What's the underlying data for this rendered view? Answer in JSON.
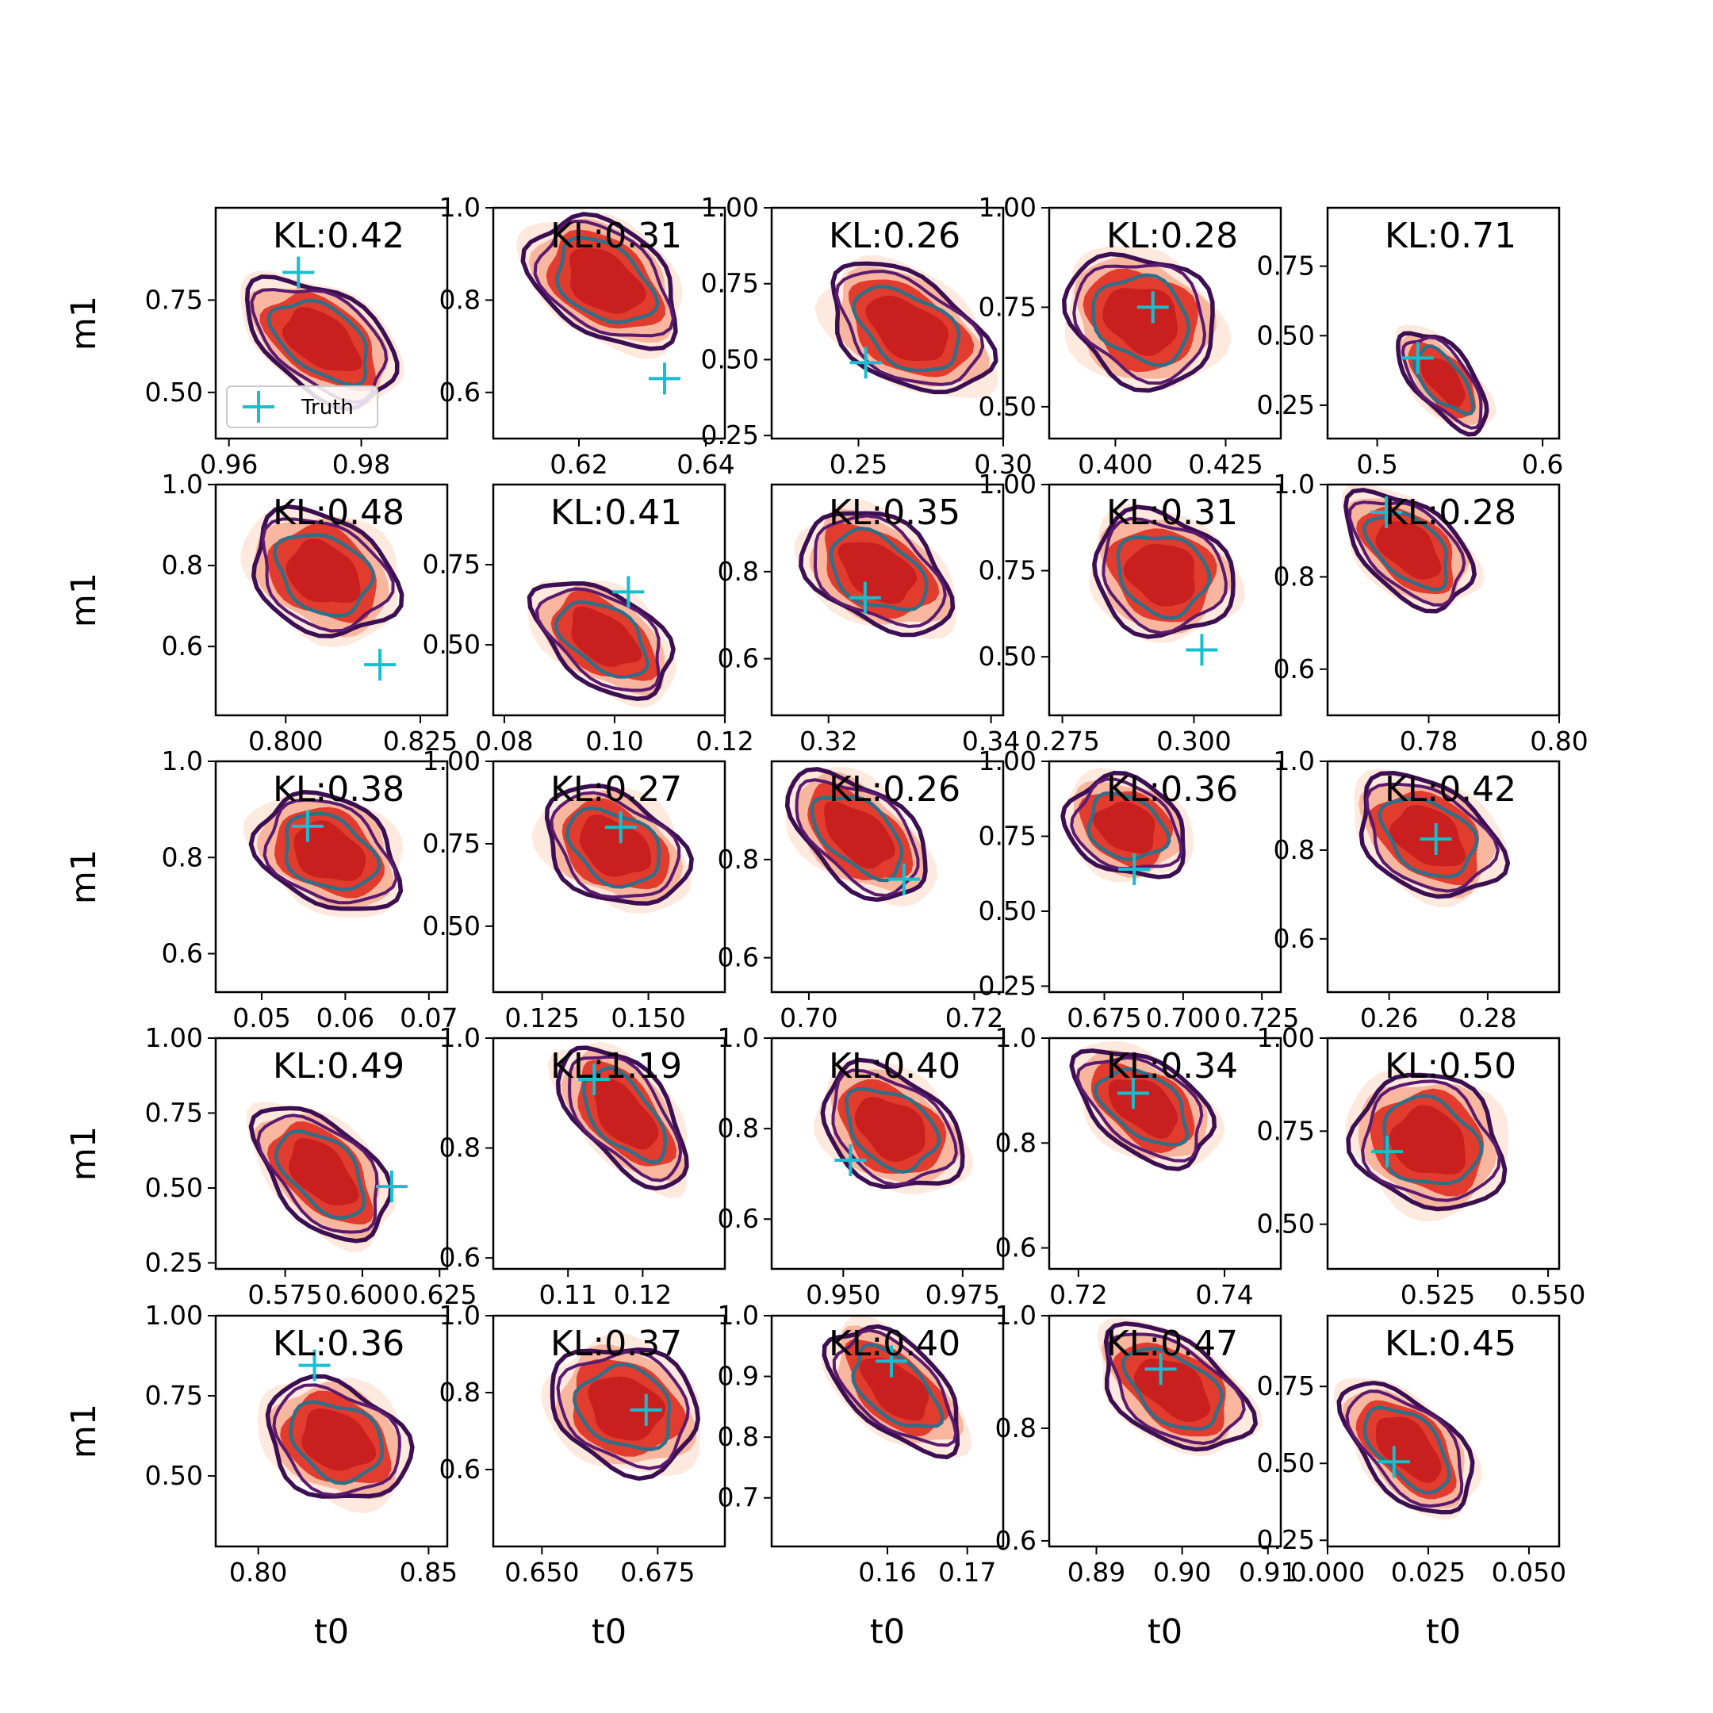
{
  "colors": {
    "posterior_fill_outer": "#fde0d2",
    "posterior_fill_mid": "#f8b39a",
    "posterior_fill_inner": "#e03628",
    "posterior_fill_core": "#c71d1d",
    "contour_outer": "#3b0f52",
    "contour_mid": "#5a1a6e",
    "contour_inner": "#2f6f87",
    "truth_marker": "#17becf"
  },
  "legend": {
    "label": "Truth",
    "panel": 0,
    "placement": "lower-left"
  },
  "chart_data": {
    "type": "contour-grid",
    "rows": 5,
    "cols": 5,
    "xlabel": "t0",
    "ylabel": "m1",
    "panels": [
      {
        "kl": "KL:0.42",
        "xlim": [
          0.958,
          0.993
        ],
        "ylim": [
          0.375,
          1.0
        ],
        "xticks": [
          0.96,
          0.98
        ],
        "xtick_labels": [
          "0.96",
          "0.98"
        ],
        "yticks": [
          0.5,
          0.75
        ],
        "ytick_labels": [
          "0.50",
          "0.75"
        ],
        "truth": [
          0.9705,
          0.825
        ],
        "center": [
          0.974,
          0.64
        ],
        "spread": [
          0.008,
          0.17
        ],
        "angle": -55
      },
      {
        "kl": "KL:0.31",
        "xlim": [
          0.6065,
          0.643
        ],
        "ylim": [
          0.5,
          1.0
        ],
        "xticks": [
          0.62,
          0.64
        ],
        "xtick_labels": [
          "0.62",
          "0.64"
        ],
        "yticks": [
          0.6,
          0.8,
          1.0
        ],
        "ytick_labels": [
          "0.6",
          "0.8",
          "1.0"
        ],
        "truth": [
          0.6335,
          0.63
        ],
        "center": [
          0.624,
          0.84
        ],
        "spread": [
          0.008,
          0.15
        ],
        "angle": -55
      },
      {
        "kl": "KL:0.26",
        "xlim": [
          0.22,
          0.3
        ],
        "ylim": [
          0.24,
          1.0
        ],
        "xticks": [
          0.25,
          0.3
        ],
        "xtick_labels": [
          "0.25",
          "0.30"
        ],
        "yticks": [
          0.25,
          0.5,
          0.75,
          1.0
        ],
        "ytick_labels": [
          "0.25",
          "0.50",
          "0.75",
          "1.00"
        ],
        "truth": [
          0.2525,
          0.49
        ],
        "center": [
          0.267,
          0.6
        ],
        "spread": [
          0.02,
          0.22
        ],
        "angle": -58
      },
      {
        "kl": "KL:0.28",
        "xlim": [
          0.385,
          0.4375
        ],
        "ylim": [
          0.42,
          1.0
        ],
        "xticks": [
          0.4,
          0.425
        ],
        "xtick_labels": [
          "0.400",
          "0.425"
        ],
        "yticks": [
          0.5,
          0.75,
          1.0
        ],
        "ytick_labels": [
          "0.50",
          "0.75",
          "1.00"
        ],
        "truth": [
          0.4085,
          0.75
        ],
        "center": [
          0.406,
          0.72
        ],
        "spread": [
          0.01,
          0.2
        ],
        "angle": -60
      },
      {
        "kl": "KL:0.71",
        "xlim": [
          0.47,
          0.61
        ],
        "ylim": [
          0.13,
          0.96
        ],
        "xticks": [
          0.5,
          0.6
        ],
        "xtick_labels": [
          "0.5",
          "0.6"
        ],
        "yticks": [
          0.25,
          0.5,
          0.75
        ],
        "ytick_labels": [
          "0.25",
          "0.50",
          "0.75"
        ],
        "truth": [
          0.5245,
          0.42
        ],
        "center": [
          0.54,
          0.34
        ],
        "spread": [
          0.022,
          0.08
        ],
        "angle": -40
      },
      {
        "kl": "KL:0.48",
        "xlim": [
          0.787,
          0.83
        ],
        "ylim": [
          0.43,
          1.0
        ],
        "xticks": [
          0.8,
          0.825
        ],
        "xtick_labels": [
          "0.800",
          "0.825"
        ],
        "yticks": [
          0.6,
          0.8,
          1.0
        ],
        "ytick_labels": [
          "0.6",
          "0.8",
          "1.0"
        ],
        "truth": [
          0.8175,
          0.555
        ],
        "center": [
          0.807,
          0.78
        ],
        "spread": [
          0.008,
          0.18
        ],
        "angle": -60
      },
      {
        "kl": "KL:0.41",
        "xlim": [
          0.078,
          0.12
        ],
        "ylim": [
          0.28,
          1.0
        ],
        "xticks": [
          0.08,
          0.1,
          0.12
        ],
        "xtick_labels": [
          "0.08",
          "0.10",
          "0.12"
        ],
        "yticks": [
          0.5,
          0.75
        ],
        "ytick_labels": [
          "0.50",
          "0.75"
        ],
        "truth": [
          0.1025,
          0.665
        ],
        "center": [
          0.098,
          0.52
        ],
        "spread": [
          0.008,
          0.18
        ],
        "angle": -55
      },
      {
        "kl": "KL:0.35",
        "xlim": [
          0.313,
          0.3415
        ],
        "ylim": [
          0.47,
          1.0
        ],
        "xticks": [
          0.32,
          0.34
        ],
        "xtick_labels": [
          "0.32",
          "0.34"
        ],
        "yticks": [
          0.6,
          0.8
        ],
        "ytick_labels": [
          "0.6",
          "0.8"
        ],
        "truth": [
          0.3245,
          0.74
        ],
        "center": [
          0.326,
          0.8
        ],
        "spread": [
          0.006,
          0.15
        ],
        "angle": -58
      },
      {
        "kl": "KL:0.31",
        "xlim": [
          0.2725,
          0.3165
        ],
        "ylim": [
          0.33,
          1.0
        ],
        "xticks": [
          0.275,
          0.3
        ],
        "xtick_labels": [
          "0.275",
          "0.300"
        ],
        "yticks": [
          0.5,
          0.75,
          1.0
        ],
        "ytick_labels": [
          "0.50",
          "0.75",
          "1.00"
        ],
        "truth": [
          0.3015,
          0.52
        ],
        "center": [
          0.294,
          0.74
        ],
        "spread": [
          0.007,
          0.22
        ],
        "angle": -65
      },
      {
        "kl": "KL:0.28",
        "xlim": [
          0.7645,
          0.8
        ],
        "ylim": [
          0.5,
          1.0
        ],
        "xticks": [
          0.78,
          0.8
        ],
        "xtick_labels": [
          "0.78",
          "0.80"
        ],
        "yticks": [
          0.6,
          0.8,
          1.0
        ],
        "ytick_labels": [
          "0.6",
          "0.8",
          "1.0"
        ],
        "truth": [
          0.7735,
          0.94
        ],
        "center": [
          0.777,
          0.86
        ],
        "spread": [
          0.006,
          0.12
        ],
        "angle": -50
      },
      {
        "kl": "KL:0.38",
        "xlim": [
          0.0445,
          0.0722
        ],
        "ylim": [
          0.52,
          1.0
        ],
        "xticks": [
          0.05,
          0.06,
          0.07
        ],
        "xtick_labels": [
          "0.05",
          "0.06",
          "0.07"
        ],
        "yticks": [
          0.6,
          0.8,
          1.0
        ],
        "ytick_labels": [
          "0.6",
          "0.8",
          "1.0"
        ],
        "truth": [
          0.0555,
          0.865
        ],
        "center": [
          0.058,
          0.81
        ],
        "spread": [
          0.005,
          0.14
        ],
        "angle": -62
      },
      {
        "kl": "KL:0.27",
        "xlim": [
          0.1135,
          0.168
        ],
        "ylim": [
          0.3,
          1.0
        ],
        "xticks": [
          0.125,
          0.15
        ],
        "xtick_labels": [
          "0.125",
          "0.150"
        ],
        "yticks": [
          0.5,
          0.75,
          1.0
        ],
        "ytick_labels": [
          "0.50",
          "0.75",
          "1.00"
        ],
        "truth": [
          0.1435,
          0.8
        ],
        "center": [
          0.142,
          0.74
        ],
        "spread": [
          0.01,
          0.2
        ],
        "angle": -60
      },
      {
        "kl": "KL:0.26",
        "xlim": [
          0.6955,
          0.7235
        ],
        "ylim": [
          0.53,
          1.0
        ],
        "xticks": [
          0.7,
          0.72
        ],
        "xtick_labels": [
          "0.70",
          "0.72"
        ],
        "yticks": [
          0.6,
          0.8
        ],
        "ytick_labels": [
          "0.6",
          "0.8"
        ],
        "truth": [
          0.7115,
          0.76
        ],
        "center": [
          0.706,
          0.85
        ],
        "spread": [
          0.006,
          0.12
        ],
        "angle": -50
      },
      {
        "kl": "KL:0.36",
        "xlim": [
          0.6575,
          0.731
        ],
        "ylim": [
          0.23,
          1.0
        ],
        "xticks": [
          0.675,
          0.7,
          0.725
        ],
        "xtick_labels": [
          "0.675",
          "0.700",
          "0.725"
        ],
        "yticks": [
          0.25,
          0.5,
          0.75,
          1.0
        ],
        "ytick_labels": [
          "0.25",
          "0.50",
          "0.75",
          "1.00"
        ],
        "truth": [
          0.6845,
          0.64
        ],
        "center": [
          0.682,
          0.78
        ],
        "spread": [
          0.008,
          0.2
        ],
        "angle": -65
      },
      {
        "kl": "KL:0.42",
        "xlim": [
          0.2475,
          0.2945
        ],
        "ylim": [
          0.48,
          1.0
        ],
        "xticks": [
          0.26,
          0.28
        ],
        "xtick_labels": [
          "0.26",
          "0.28"
        ],
        "yticks": [
          0.6,
          0.8,
          1.0
        ],
        "ytick_labels": [
          "0.6",
          "0.8",
          "1.0"
        ],
        "truth": [
          0.2695,
          0.825
        ],
        "center": [
          0.268,
          0.83
        ],
        "spread": [
          0.009,
          0.15
        ],
        "angle": -58
      },
      {
        "kl": "KL:0.49",
        "xlim": [
          0.5525,
          0.6275
        ],
        "ylim": [
          0.23,
          1.0
        ],
        "xticks": [
          0.575,
          0.6,
          0.625
        ],
        "xtick_labels": [
          "0.575",
          "0.600",
          "0.625"
        ],
        "yticks": [
          0.25,
          0.5,
          0.75,
          1.0
        ],
        "ytick_labels": [
          "0.25",
          "0.50",
          "0.75",
          "1.00"
        ],
        "truth": [
          0.6095,
          0.505
        ],
        "center": [
          0.587,
          0.55
        ],
        "spread": [
          0.016,
          0.2
        ],
        "angle": -45
      },
      {
        "kl": "KL:1.19",
        "xlim": [
          0.1,
          0.131
        ],
        "ylim": [
          0.58,
          1.0
        ],
        "xticks": [
          0.11,
          0.12
        ],
        "xtick_labels": [
          "0.11",
          "0.12"
        ],
        "yticks": [
          0.6,
          0.8,
          1.0
        ],
        "ytick_labels": [
          "0.6",
          "0.8",
          "1.0"
        ],
        "truth": [
          0.1135,
          0.925
        ],
        "center": [
          0.1175,
          0.86
        ],
        "spread": [
          0.007,
          0.1
        ],
        "angle": -40
      },
      {
        "kl": "KL:0.40",
        "xlim": [
          0.935,
          0.9835
        ],
        "ylim": [
          0.49,
          1.0
        ],
        "xticks": [
          0.95,
          0.975
        ],
        "xtick_labels": [
          "0.950",
          "0.975"
        ],
        "yticks": [
          0.6,
          0.8,
          1.0
        ],
        "ytick_labels": [
          "0.6",
          "0.8",
          "1.0"
        ],
        "truth": [
          0.9515,
          0.73
        ],
        "center": [
          0.96,
          0.8
        ],
        "spread": [
          0.009,
          0.15
        ],
        "angle": -55
      },
      {
        "kl": "KL:0.34",
        "xlim": [
          0.716,
          0.7477
        ],
        "ylim": [
          0.56,
          1.0
        ],
        "xticks": [
          0.72,
          0.74
        ],
        "xtick_labels": [
          "0.72",
          "0.74"
        ],
        "yticks": [
          0.6,
          0.8,
          1.0
        ],
        "ytick_labels": [
          "0.6",
          "0.8",
          "1.0"
        ],
        "truth": [
          0.7275,
          0.895
        ],
        "center": [
          0.729,
          0.87
        ],
        "spread": [
          0.006,
          0.11
        ],
        "angle": -55
      },
      {
        "kl": "KL:0.50",
        "xlim": [
          0.5,
          0.5525
        ],
        "ylim": [
          0.38,
          1.0
        ],
        "xticks": [
          0.525,
          0.55
        ],
        "xtick_labels": [
          "0.525",
          "0.550"
        ],
        "yticks": [
          0.5,
          0.75,
          1.0
        ],
        "ytick_labels": [
          "0.50",
          "0.75",
          "1.00"
        ],
        "truth": [
          0.5135,
          0.695
        ],
        "center": [
          0.523,
          0.72
        ],
        "spread": [
          0.01,
          0.22
        ],
        "angle": -62
      },
      {
        "kl": "KL:0.36",
        "xlim": [
          0.7875,
          0.8555
        ],
        "ylim": [
          0.28,
          1.0
        ],
        "xticks": [
          0.8,
          0.85
        ],
        "xtick_labels": [
          "0.80",
          "0.85"
        ],
        "yticks": [
          0.5,
          0.75,
          1.0
        ],
        "ytick_labels": [
          "0.50",
          "0.75",
          "1.00"
        ],
        "truth": [
          0.8165,
          0.845
        ],
        "center": [
          0.823,
          0.61
        ],
        "spread": [
          0.012,
          0.22
        ],
        "angle": -62
      },
      {
        "kl": "KL:0.37",
        "xlim": [
          0.6395,
          0.6895
        ],
        "ylim": [
          0.4,
          1.0
        ],
        "xticks": [
          0.65,
          0.675
        ],
        "xtick_labels": [
          "0.650",
          "0.675"
        ],
        "yticks": [
          0.6,
          0.8,
          1.0
        ],
        "ytick_labels": [
          "0.6",
          "0.8",
          "1.0"
        ],
        "truth": [
          0.6725,
          0.755
        ],
        "center": [
          0.668,
          0.76
        ],
        "spread": [
          0.009,
          0.2
        ],
        "angle": -65
      },
      {
        "kl": "KL:0.40",
        "xlim": [
          0.1455,
          0.1745
        ],
        "ylim": [
          0.62,
          1.0
        ],
        "xticks": [
          0.16,
          0.17
        ],
        "xtick_labels": [
          "0.16",
          "0.17"
        ],
        "yticks": [
          0.7,
          0.8,
          0.9,
          1.0
        ],
        "ytick_labels": [
          "0.7",
          "0.8",
          "0.9",
          "1.0"
        ],
        "truth": [
          0.1605,
          0.925
        ],
        "center": [
          0.161,
          0.88
        ],
        "spread": [
          0.006,
          0.09
        ],
        "angle": -48
      },
      {
        "kl": "KL:0.47",
        "xlim": [
          0.8845,
          0.9115
        ],
        "ylim": [
          0.59,
          1.0
        ],
        "xticks": [
          0.89,
          0.9,
          0.91
        ],
        "xtick_labels": [
          "0.89",
          "0.90",
          "0.91"
        ],
        "yticks": [
          0.6,
          0.8,
          1.0
        ],
        "ytick_labels": [
          "0.6",
          "0.8",
          "1.0"
        ],
        "truth": [
          0.8975,
          0.905
        ],
        "center": [
          0.899,
          0.87
        ],
        "spread": [
          0.006,
          0.11
        ],
        "angle": -55
      },
      {
        "kl": "KL:0.45",
        "xlim": [
          0.0,
          0.0575
        ],
        "ylim": [
          0.23,
          0.98
        ],
        "xticks": [
          0.0,
          0.025,
          0.05
        ],
        "xtick_labels": [
          "0.000",
          "0.025",
          "0.050"
        ],
        "yticks": [
          0.25,
          0.5,
          0.75
        ],
        "ytick_labels": [
          "0.25",
          "0.50",
          "0.75"
        ],
        "truth": [
          0.0165,
          0.505
        ],
        "center": [
          0.02,
          0.55
        ],
        "spread": [
          0.012,
          0.18
        ],
        "angle": -45
      }
    ]
  }
}
